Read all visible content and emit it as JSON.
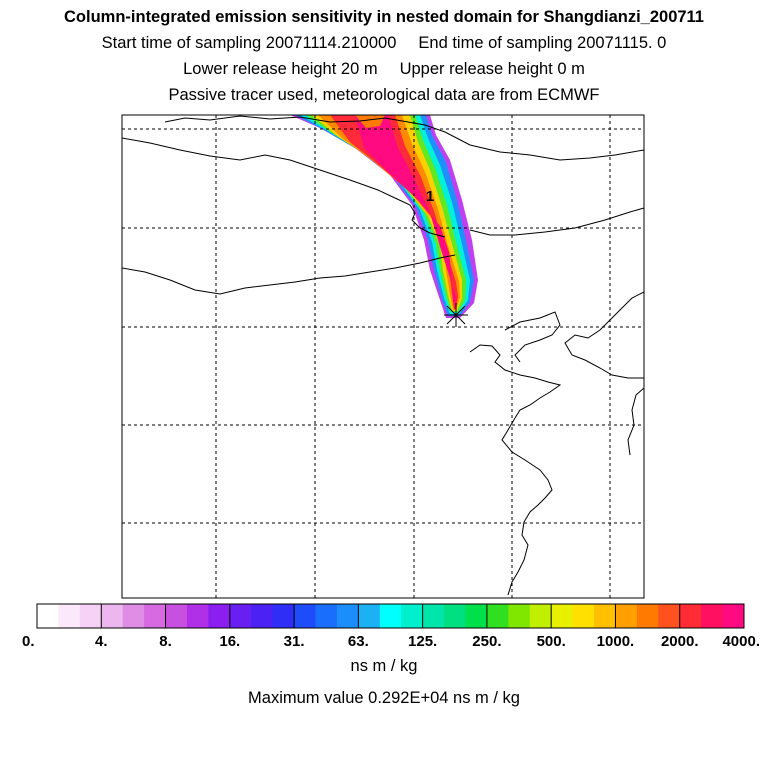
{
  "header": {
    "title": "Column-integrated emission sensitivity in nested domain for Shangdianzi_200711",
    "start_label": "Start time of sampling 20071114.210000",
    "end_label": "End time of sampling 20071115.     0",
    "lower_label": "Lower release height   20 m",
    "upper_label": "Upper release height    0 m",
    "tracer_label": "Passive tracer used, meteorological data are from ECMWF"
  },
  "map": {
    "cluster_label": "1",
    "receptor_marker": "receptor-star-icon"
  },
  "colorbar": {
    "unit": "ns m / kg",
    "max_value_text": "Maximum value  0.292E+04 ns m / kg"
  },
  "chart_data": {
    "type": "heatmap",
    "title": "Column-integrated emission sensitivity in nested domain for Shangdianzi_200711",
    "colorbar_ticks": [
      "0.",
      "4.",
      "8.",
      "16.",
      "31.",
      "63.",
      "125.",
      "250.",
      "500.",
      "1000.",
      "2000.",
      "4000."
    ],
    "colorbar_tick_values": [
      0,
      4,
      8,
      16,
      31,
      63,
      125,
      250,
      500,
      1000,
      2000,
      4000
    ],
    "colorbar_unit": "ns m / kg",
    "max_value": 2920,
    "colors": [
      "#ffffff",
      "#fbe8fb",
      "#f5d2f6",
      "#ecb6ef",
      "#e08de6",
      "#d76ae0",
      "#c850e0",
      "#b030e8",
      "#8a1ff0",
      "#6a1ff2",
      "#4c22f4",
      "#2f2ef6",
      "#1e4cfa",
      "#1a6efc",
      "#1c8efc",
      "#1cb0f4",
      "#00ffff",
      "#00f0cc",
      "#00e6aa",
      "#00e080",
      "#00e04a",
      "#30e020",
      "#80e800",
      "#c0f000",
      "#e8f000",
      "#ffe000",
      "#ffc000",
      "#ffa000",
      "#ff7a00",
      "#ff5020",
      "#ff2b35",
      "#ff1060",
      "#ff0a80",
      "#f00a9a",
      "#e00ca8",
      "#c80c9c",
      "#a00a90",
      "#7a0878",
      "#560660",
      "#400040"
    ],
    "receptor": "Shangdianzi",
    "sampling_start": "20071114.210000",
    "sampling_end": "20071115.     0",
    "lower_release_height_m": 20,
    "upper_release_height_m": 0
  }
}
